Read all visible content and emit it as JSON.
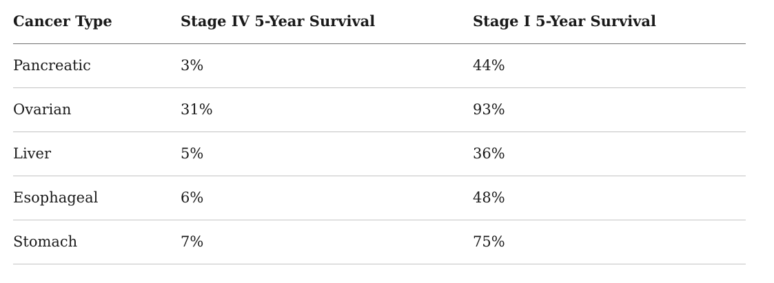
{
  "chart_data": {
    "type": "table",
    "columns": [
      "Cancer Type",
      "Stage IV 5-Year Survival",
      "Stage I 5-Year Survival"
    ],
    "rows": [
      [
        "Pancreatic",
        "3%",
        "44%"
      ],
      [
        "Ovarian",
        "31%",
        "93%"
      ],
      [
        "Liver",
        "5%",
        "36%"
      ],
      [
        "Esophageal",
        "6%",
        "48%"
      ],
      [
        "Stomach",
        "7%",
        "75%"
      ]
    ],
    "values_numeric": {
      "stage_iv_percent": [
        3,
        31,
        5,
        6,
        7
      ],
      "stage_i_percent": [
        44,
        93,
        36,
        48,
        75
      ]
    },
    "title": "",
    "layout_hints": {
      "grid": "horizontal-dividers-only",
      "header_style": "bold-serif"
    }
  },
  "colors": {
    "text": "#1a1a1a",
    "header_divider": "#6f6f6f",
    "row_divider": "#c2c2c2",
    "background": "#ffffff"
  }
}
